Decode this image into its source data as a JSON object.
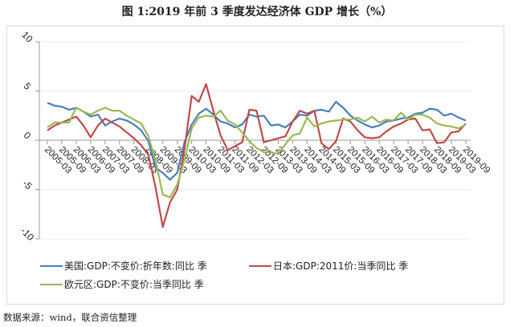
{
  "chart_data": {
    "type": "line",
    "title": "图 1:2019 年前 3 季度发达经济体 GDP 增长（%）",
    "xlabel": "",
    "ylabel": "",
    "ylim": [
      -10,
      10
    ],
    "yticks": [
      "10",
      "5",
      "0",
      "-5",
      "-10"
    ],
    "ytick_values": [
      10,
      5,
      0,
      -5,
      -10
    ],
    "grid": "horizontal",
    "legend_position": "bottom",
    "x": [
      "2005-03",
      "2005-06",
      "2005-09",
      "2005-12",
      "2006-03",
      "2006-06",
      "2006-09",
      "2006-12",
      "2007-03",
      "2007-06",
      "2007-09",
      "2007-12",
      "2008-03",
      "2008-06",
      "2008-09",
      "2008-12",
      "2009-03",
      "2009-06",
      "2009-09",
      "2009-12",
      "2010-03",
      "2010-06",
      "2010-09",
      "2010-12",
      "2011-03",
      "2011-06",
      "2011-09",
      "2011-12",
      "2012-03",
      "2012-06",
      "2012-09",
      "2012-12",
      "2013-03",
      "2013-06",
      "2013-09",
      "2013-12",
      "2014-03",
      "2014-06",
      "2014-09",
      "2014-12",
      "2015-03",
      "2015-06",
      "2015-09",
      "2015-12",
      "2016-03",
      "2016-06",
      "2016-09",
      "2016-12",
      "2017-03",
      "2017-06",
      "2017-09",
      "2017-12",
      "2018-03",
      "2018-06",
      "2018-09",
      "2018-12",
      "2019-03",
      "2019-06",
      "2019-09"
    ],
    "xtick_labels": [
      "2005-03",
      "2005-09",
      "2006-03",
      "2006-09",
      "2007-03",
      "2007-09",
      "2008-03",
      "2008-09",
      "2009-03",
      "2009-09",
      "2010-03",
      "2010-09",
      "2011-03",
      "2011-09",
      "2012-03",
      "2012-09",
      "2013-03",
      "2013-09",
      "2014-03",
      "2014-09",
      "2015-03",
      "2015-09",
      "2016-03",
      "2016-09",
      "2017-03",
      "2017-09",
      "2018-03",
      "2018-09",
      "2019-03",
      "2019-09"
    ],
    "series": [
      {
        "name": "美国:GDP:不变价:折年数:同比 季",
        "color": "#4a7ebb",
        "values": [
          3.8,
          3.5,
          3.4,
          3.1,
          3.3,
          2.9,
          2.4,
          2.6,
          1.5,
          1.9,
          2.2,
          2.0,
          1.6,
          1.0,
          -0.1,
          -2.8,
          -3.3,
          -4.0,
          -3.3,
          -0.2,
          1.6,
          2.7,
          3.2,
          2.6,
          1.9,
          1.7,
          1.3,
          1.6,
          2.6,
          2.4,
          2.5,
          1.5,
          1.6,
          1.3,
          1.9,
          2.6,
          2.5,
          3.0,
          3.1,
          2.9,
          3.9,
          3.3,
          2.5,
          2.0,
          1.6,
          1.3,
          1.5,
          1.9,
          2.0,
          2.2,
          2.3,
          2.7,
          2.8,
          3.2,
          3.1,
          2.5,
          2.7,
          2.3,
          2.0
        ]
      },
      {
        "name": "日本:GDP:2011价:当季同比 季",
        "color": "#be4b48",
        "values": [
          1.0,
          1.5,
          1.8,
          2.1,
          2.4,
          1.5,
          0.3,
          1.5,
          2.2,
          1.8,
          1.4,
          0.8,
          0.2,
          -0.5,
          -1.5,
          -4.8,
          -8.8,
          -6.3,
          -5.0,
          -0.9,
          4.5,
          3.9,
          5.7,
          3.0,
          0.5,
          -1.0,
          -0.6,
          -0.2,
          3.1,
          3.0,
          -0.2,
          0.0,
          0.2,
          0.4,
          1.9,
          3.0,
          2.7,
          3.0,
          -0.3,
          -0.9,
          -0.1,
          2.2,
          1.9,
          1.0,
          0.3,
          0.2,
          0.3,
          0.9,
          1.4,
          1.7,
          2.1,
          2.2,
          1.0,
          1.1,
          -0.3,
          -0.2,
          0.8,
          0.9,
          1.7
        ]
      },
      {
        "name": "欧元区:GDP:不变价:当季同比 季",
        "color": "#98b954",
        "values": [
          1.3,
          1.8,
          1.8,
          1.8,
          3.3,
          2.9,
          2.6,
          3.0,
          3.3,
          3.0,
          3.0,
          2.5,
          2.1,
          1.7,
          0.4,
          -2.1,
          -5.5,
          -5.8,
          -4.5,
          -2.0,
          1.2,
          2.3,
          2.5,
          2.4,
          3.0,
          2.0,
          1.6,
          0.8,
          -0.1,
          -0.8,
          -1.2,
          -1.2,
          -1.4,
          -0.4,
          0.5,
          0.7,
          2.3,
          1.4,
          1.7,
          1.9,
          2.0,
          2.1,
          2.1,
          2.3,
          1.9,
          2.4,
          1.8,
          2.1,
          2.0,
          2.8,
          2.1,
          2.6,
          2.6,
          2.3,
          1.7,
          1.5,
          1.4,
          1.2,
          1.6
        ]
      }
    ]
  },
  "source": "数据来源：wind，联合资信整理"
}
